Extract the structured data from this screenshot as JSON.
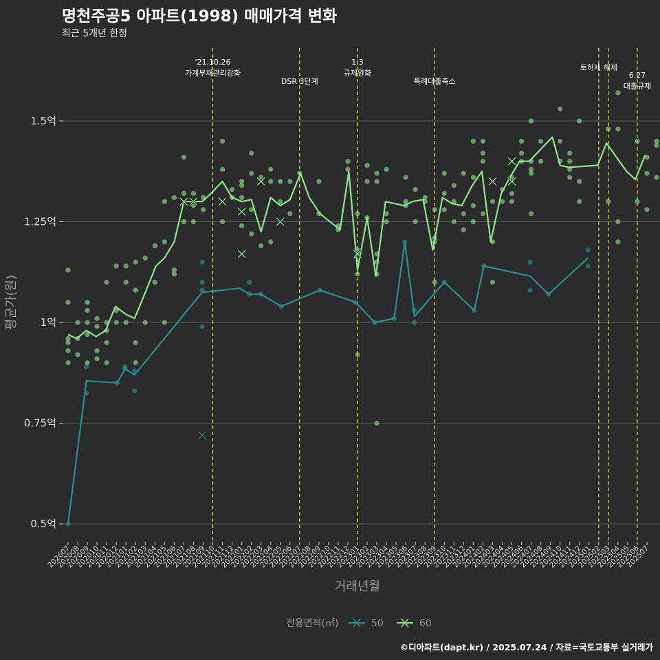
{
  "title": "명천주공5 아파트(1998) 매매가격 변화",
  "subtitle": "최근 5개년 한정",
  "caption": "©디아파트(dapt.kr) / 2025.07.24 / 자료=국토교통부 실거래가",
  "chart_data": {
    "type": "line",
    "xlabel": "거래년월",
    "ylabel": "평균가(원)",
    "ylim": [
      0.45,
      1.65
    ],
    "yticks": [
      0.5,
      0.75,
      1.0,
      1.25,
      1.5
    ],
    "ytick_labels": [
      "0.5억",
      "0.75억",
      "1억",
      "1.25억",
      "1.5억"
    ],
    "categories": [
      "202007",
      "202008",
      "202009",
      "202010",
      "202011",
      "202012",
      "202101",
      "202102",
      "202103",
      "202104",
      "202105",
      "202106",
      "202107",
      "202108",
      "202109",
      "202110",
      "202111",
      "202112",
      "202201",
      "202202",
      "202203",
      "202204",
      "202205",
      "202206",
      "202207",
      "202208",
      "202209",
      "202210",
      "202211",
      "202212",
      "202301",
      "202302",
      "202303",
      "202304",
      "202305",
      "202306",
      "202307",
      "202308",
      "202309",
      "202310",
      "202311",
      "202312",
      "202401",
      "202402",
      "202403",
      "202404",
      "202405",
      "202406",
      "202407",
      "202408",
      "202409",
      "202410",
      "202411",
      "202412",
      "202501",
      "202502",
      "202503",
      "202504",
      "202505",
      "202506",
      "202507"
    ],
    "legend_title": "전용면적(㎡)",
    "legend_position": "bottom",
    "grid": true,
    "series": [
      {
        "name": "50",
        "color": "#2a8f8f",
        "line": [
          [
            0,
            0.5
          ],
          [
            1.9,
            0.855
          ],
          [
            5.1,
            0.85
          ],
          [
            5.9,
            0.885
          ],
          [
            6.9,
            0.87
          ],
          [
            13.9,
            1.075
          ],
          [
            17.8,
            1.085
          ],
          [
            18.8,
            1.07
          ],
          [
            20,
            1.07
          ],
          [
            22.1,
            1.04
          ],
          [
            26.1,
            1.08
          ],
          [
            29.8,
            1.05
          ],
          [
            31.8,
            1.0
          ],
          [
            33.8,
            1.01
          ],
          [
            34.9,
            1.2
          ],
          [
            35.9,
            1.015
          ],
          [
            39,
            1.1
          ],
          [
            42.1,
            1.03
          ],
          [
            43.1,
            1.14
          ],
          [
            47.9,
            1.115
          ],
          [
            49.8,
            1.07
          ],
          [
            53.9,
            1.16
          ]
        ],
        "points": [
          [
            0,
            0.5
          ],
          [
            1.9,
            0.89
          ],
          [
            1.9,
            0.825
          ],
          [
            5.1,
            0.85
          ],
          [
            5.9,
            0.885
          ],
          [
            5.9,
            0.89
          ],
          [
            6.9,
            0.88
          ],
          [
            6.9,
            0.83
          ],
          [
            13.9,
            1.15
          ],
          [
            13.9,
            1.1
          ],
          [
            13.9,
            1.08
          ],
          [
            13.9,
            0.99
          ],
          [
            18.8,
            1.1
          ],
          [
            18.8,
            1.07
          ],
          [
            20,
            1.07
          ],
          [
            22.1,
            1.04
          ],
          [
            26.1,
            1.08
          ],
          [
            29.8,
            1.05
          ],
          [
            31.8,
            1.0
          ],
          [
            33.8,
            1.01
          ],
          [
            34.9,
            1.2
          ],
          [
            35.9,
            1.03
          ],
          [
            35.9,
            1.0
          ],
          [
            39,
            1.1
          ],
          [
            42.1,
            1.03
          ],
          [
            43.1,
            1.14
          ],
          [
            47.9,
            1.15
          ],
          [
            47.9,
            1.08
          ],
          [
            49.8,
            1.07
          ],
          [
            53.9,
            1.18
          ],
          [
            53.9,
            1.14
          ]
        ],
        "marks": [
          [
            13.9,
            0.72
          ]
        ]
      },
      {
        "name": "60",
        "color": "#8fe68a",
        "line": [
          [
            0,
            0.97
          ],
          [
            0.9,
            0.96
          ],
          [
            1.9,
            0.98
          ],
          [
            2.9,
            0.965
          ],
          [
            3.9,
            0.98
          ],
          [
            4.9,
            1.04
          ],
          [
            6,
            1.02
          ],
          [
            6.9,
            1.01
          ],
          [
            8.1,
            1.08
          ],
          [
            9.1,
            1.14
          ],
          [
            10,
            1.16
          ],
          [
            11,
            1.2
          ],
          [
            12,
            1.3
          ],
          [
            12.9,
            1.3
          ],
          [
            13.9,
            1.3
          ],
          [
            14.8,
            1.32
          ],
          [
            16,
            1.35
          ],
          [
            17,
            1.31
          ],
          [
            18,
            1.3
          ],
          [
            19,
            1.305
          ],
          [
            20,
            1.225
          ],
          [
            21,
            1.31
          ],
          [
            22,
            1.29
          ],
          [
            23,
            1.305
          ],
          [
            24.1,
            1.37
          ],
          [
            25,
            1.31
          ],
          [
            26.1,
            1.27
          ],
          [
            28.2,
            1.23
          ],
          [
            29.1,
            1.375
          ],
          [
            30,
            1.13
          ],
          [
            31,
            1.26
          ],
          [
            31.9,
            1.115
          ],
          [
            32.9,
            1.3
          ],
          [
            34.8,
            1.29
          ],
          [
            35.7,
            1.3
          ],
          [
            36.8,
            1.305
          ],
          [
            37.8,
            1.18
          ],
          [
            38.8,
            1.31
          ],
          [
            39.8,
            1.295
          ],
          [
            40.8,
            1.29
          ],
          [
            41.9,
            1.34
          ],
          [
            42.9,
            1.375
          ],
          [
            43.8,
            1.2
          ],
          [
            44.9,
            1.32
          ],
          [
            45.8,
            1.36
          ],
          [
            46.8,
            1.4
          ],
          [
            47.8,
            1.4
          ],
          [
            48.8,
            1.425
          ],
          [
            50.2,
            1.46
          ],
          [
            51,
            1.39
          ],
          [
            51.9,
            1.385
          ],
          [
            54.9,
            1.39
          ],
          [
            55.8,
            1.445
          ],
          [
            57.9,
            1.375
          ],
          [
            58.8,
            1.355
          ],
          [
            59.8,
            1.415
          ]
        ],
        "points": [
          [
            0,
            1.13
          ],
          [
            0,
            1.05
          ],
          [
            0,
            0.96
          ],
          [
            0,
            0.95
          ],
          [
            0,
            0.93
          ],
          [
            0,
            0.9
          ],
          [
            1,
            1.0
          ],
          [
            1,
            0.96
          ],
          [
            1,
            0.92
          ],
          [
            2,
            1.05
          ],
          [
            2,
            1.03
          ],
          [
            2,
            1.0
          ],
          [
            2,
            0.97
          ],
          [
            2,
            0.9
          ],
          [
            3,
            1.01
          ],
          [
            3,
            0.99
          ],
          [
            3,
            0.93
          ],
          [
            3,
            0.91
          ],
          [
            4,
            1.1
          ],
          [
            4,
            1.0
          ],
          [
            4,
            0.98
          ],
          [
            4,
            0.95
          ],
          [
            4,
            0.9
          ],
          [
            5,
            1.14
          ],
          [
            5,
            1.03
          ],
          [
            5,
            1.0
          ],
          [
            6,
            1.14
          ],
          [
            6,
            1.1
          ],
          [
            6,
            1.0
          ],
          [
            7,
            1.15
          ],
          [
            7,
            1.08
          ],
          [
            7,
            0.95
          ],
          [
            7,
            0.9
          ],
          [
            8,
            1.16
          ],
          [
            8,
            1.0
          ],
          [
            9,
            1.19
          ],
          [
            9,
            1.1
          ],
          [
            10,
            1.3
          ],
          [
            10,
            1.2
          ],
          [
            10,
            1.0
          ],
          [
            11,
            1.31
          ],
          [
            11,
            1.13
          ],
          [
            11,
            1.12
          ],
          [
            12,
            1.41
          ],
          [
            12,
            1.32
          ],
          [
            12,
            1.25
          ],
          [
            13,
            1.32
          ],
          [
            13,
            1.29
          ],
          [
            13,
            1.25
          ],
          [
            14,
            1.31
          ],
          [
            14,
            1.28
          ],
          [
            16,
            1.45
          ],
          [
            16,
            1.38
          ],
          [
            16,
            1.25
          ],
          [
            17,
            1.33
          ],
          [
            17,
            1.31
          ],
          [
            18,
            1.35
          ],
          [
            18,
            1.34
          ],
          [
            18,
            1.31
          ],
          [
            18,
            1.24
          ],
          [
            19,
            1.42
          ],
          [
            19,
            1.37
          ],
          [
            19,
            1.28
          ],
          [
            19,
            1.22
          ],
          [
            20,
            1.36
          ],
          [
            20,
            1.19
          ],
          [
            21,
            1.38
          ],
          [
            21,
            1.35
          ],
          [
            21,
            1.2
          ],
          [
            22,
            1.35
          ],
          [
            22,
            1.3
          ],
          [
            23,
            1.35
          ],
          [
            23,
            1.27
          ],
          [
            24,
            1.37
          ],
          [
            26,
            1.35
          ],
          [
            26,
            1.27
          ],
          [
            28,
            1.24
          ],
          [
            28,
            1.23
          ],
          [
            29,
            1.4
          ],
          [
            29,
            1.38
          ],
          [
            30,
            1.27
          ],
          [
            30,
            1.18
          ],
          [
            30,
            1.17
          ],
          [
            30,
            1.12
          ],
          [
            30,
            0.92
          ],
          [
            31,
            1.39
          ],
          [
            31,
            1.35
          ],
          [
            31,
            1.26
          ],
          [
            32,
            1.37
          ],
          [
            32,
            1.35
          ],
          [
            32,
            1.17
          ],
          [
            32,
            1.15
          ],
          [
            32,
            1.12
          ],
          [
            32,
            0.75
          ],
          [
            33,
            1.38
          ],
          [
            33,
            1.27
          ],
          [
            33,
            1.25
          ],
          [
            35,
            1.36
          ],
          [
            35,
            1.3
          ],
          [
            35,
            1.29
          ],
          [
            36,
            1.33
          ],
          [
            36,
            1.25
          ],
          [
            37,
            1.31
          ],
          [
            37,
            1.3
          ],
          [
            38,
            1.28
          ],
          [
            38,
            1.21
          ],
          [
            38,
            1.2
          ],
          [
            38,
            1.1
          ],
          [
            39,
            1.37
          ],
          [
            39,
            1.32
          ],
          [
            39,
            1.28
          ],
          [
            40,
            1.34
          ],
          [
            40,
            1.3
          ],
          [
            40,
            1.25
          ],
          [
            41,
            1.37
          ],
          [
            41,
            1.27
          ],
          [
            41,
            1.23
          ],
          [
            42,
            1.45
          ],
          [
            42,
            1.36
          ],
          [
            42,
            1.29
          ],
          [
            42,
            1.25
          ],
          [
            43,
            1.45
          ],
          [
            43,
            1.42
          ],
          [
            43,
            1.4
          ],
          [
            43,
            1.27
          ],
          [
            44,
            1.3
          ],
          [
            44,
            1.2
          ],
          [
            44,
            1.1
          ],
          [
            45,
            1.33
          ],
          [
            45,
            1.3
          ],
          [
            46,
            1.36
          ],
          [
            46,
            1.32
          ],
          [
            46,
            1.3
          ],
          [
            47,
            1.45
          ],
          [
            47,
            1.42
          ],
          [
            47,
            1.4
          ],
          [
            48,
            1.5
          ],
          [
            48,
            1.4
          ],
          [
            48,
            1.38
          ],
          [
            48,
            1.37
          ],
          [
            48,
            1.27
          ],
          [
            49,
            1.45
          ],
          [
            49,
            1.4
          ],
          [
            51,
            1.53
          ],
          [
            51,
            1.45
          ],
          [
            51,
            1.4
          ],
          [
            52,
            1.42
          ],
          [
            52,
            1.4
          ],
          [
            52,
            1.38
          ],
          [
            52,
            1.36
          ],
          [
            53,
            1.5
          ],
          [
            53,
            1.35
          ],
          [
            53,
            1.3
          ],
          [
            56,
            1.48
          ],
          [
            56,
            1.3
          ],
          [
            57,
            1.57
          ],
          [
            57,
            1.48
          ],
          [
            57,
            1.25
          ],
          [
            57,
            1.2
          ],
          [
            59,
            1.45
          ],
          [
            59,
            1.3
          ],
          [
            60,
            1.41
          ],
          [
            60,
            1.37
          ],
          [
            60,
            1.28
          ],
          [
            61,
            1.45
          ],
          [
            61,
            1.44
          ],
          [
            61,
            1.36
          ]
        ],
        "marks": [
          [
            12,
            1.3
          ],
          [
            13,
            1.3
          ],
          [
            16,
            1.3
          ],
          [
            18,
            1.275
          ],
          [
            18,
            1.17
          ],
          [
            20,
            1.35
          ],
          [
            22,
            1.25
          ],
          [
            30,
            1.17
          ],
          [
            44,
            1.35
          ],
          [
            46,
            1.4
          ],
          [
            46,
            1.35
          ]
        ]
      }
    ],
    "events": [
      {
        "x": 15.0,
        "label_lines": [
          "'21.10.26",
          "가계부채관리강화"
        ]
      },
      {
        "x": 24.0,
        "label_lines": [
          "DSR 3단계"
        ]
      },
      {
        "x": 30.0,
        "label_lines": [
          "1.3",
          "규제완화"
        ]
      },
      {
        "x": 38.0,
        "label_lines": [
          "특례대출축소"
        ]
      },
      {
        "x": 55.0,
        "label_lines": [
          "토허제 해제"
        ]
      },
      {
        "x": 56.0,
        "label_lines": [
          ""
        ]
      },
      {
        "x": 59.0,
        "label_lines": [
          "6.27",
          "대출규제"
        ]
      }
    ]
  }
}
